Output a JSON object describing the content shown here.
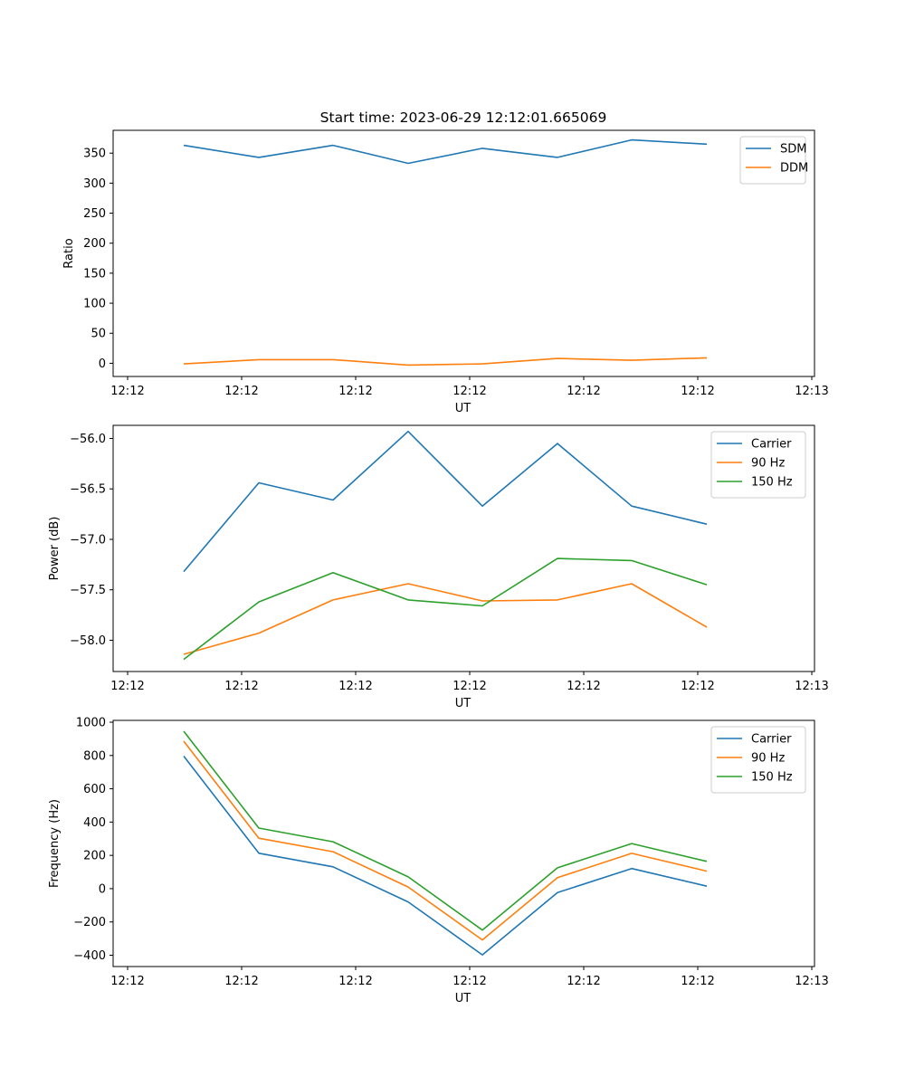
{
  "figure_title": "Start time: 2023-06-29 12:12:01.665069",
  "chart_data": [
    {
      "type": "line",
      "title": "Start time: 2023-06-29 12:12:01.665069",
      "xlabel": "UT",
      "ylabel": "Ratio",
      "x_tick_labels": [
        "12:12",
        "12:12",
        "12:12",
        "12:12",
        "12:12",
        "12:12",
        "12:13"
      ],
      "ylim": [
        -22,
        388
      ],
      "y_ticks": [
        0,
        50,
        100,
        150,
        200,
        250,
        300,
        350
      ],
      "legend_position": "top-right",
      "series": [
        {
          "name": "SDM",
          "color": "#1f77b4",
          "values": [
            363,
            343,
            363,
            333,
            358,
            343,
            372,
            365
          ]
        },
        {
          "name": "DDM",
          "color": "#ff7f0e",
          "values": [
            -1,
            6,
            6,
            -3,
            -1,
            8,
            5,
            9
          ]
        }
      ]
    },
    {
      "type": "line",
      "title": "",
      "xlabel": "UT",
      "ylabel": "Power (dB)",
      "x_tick_labels": [
        "12:12",
        "12:12",
        "12:12",
        "12:12",
        "12:12",
        "12:12",
        "12:13"
      ],
      "ylim": [
        -58.31,
        -55.87
      ],
      "y_ticks": [
        -58.0,
        -57.5,
        -57.0,
        -56.5,
        -56.0
      ],
      "y_tick_labels": [
        "−58.0",
        "−57.5",
        "−57.0",
        "−56.5",
        "−56.0"
      ],
      "legend_position": "top-right",
      "series": [
        {
          "name": "Carrier",
          "color": "#1f77b4",
          "values": [
            -57.32,
            -56.44,
            -56.61,
            -55.93,
            -56.67,
            -56.05,
            -56.67,
            -56.85
          ]
        },
        {
          "name": "90 Hz",
          "color": "#ff7f0e",
          "values": [
            -58.14,
            -57.93,
            -57.6,
            -57.44,
            -57.61,
            -57.6,
            -57.44,
            -57.87
          ]
        },
        {
          "name": "150 Hz",
          "color": "#2ca02c",
          "values": [
            -58.19,
            -57.62,
            -57.33,
            -57.6,
            -57.66,
            -57.19,
            -57.21,
            -57.45
          ]
        }
      ]
    },
    {
      "type": "line",
      "title": "",
      "xlabel": "UT",
      "ylabel": "Frequency (Hz)",
      "x_tick_labels": [
        "12:12",
        "12:12",
        "12:12",
        "12:12",
        "12:12",
        "12:12",
        "12:13"
      ],
      "ylim": [
        -468,
        1011
      ],
      "y_ticks": [
        -400,
        -200,
        0,
        200,
        400,
        600,
        800,
        1000
      ],
      "y_tick_labels": [
        "−400",
        "−200",
        "0",
        "200",
        "400",
        "600",
        "800",
        "1000"
      ],
      "legend_position": "top-right",
      "series": [
        {
          "name": "Carrier",
          "color": "#1f77b4",
          "values": [
            796,
            213,
            131,
            -80,
            -398,
            -24,
            121,
            15
          ]
        },
        {
          "name": "90 Hz",
          "color": "#ff7f0e",
          "values": [
            886,
            303,
            222,
            10,
            -308,
            66,
            212,
            105
          ]
        },
        {
          "name": "150 Hz",
          "color": "#2ca02c",
          "values": [
            946,
            364,
            282,
            71,
            -249,
            125,
            271,
            164
          ]
        }
      ]
    }
  ]
}
